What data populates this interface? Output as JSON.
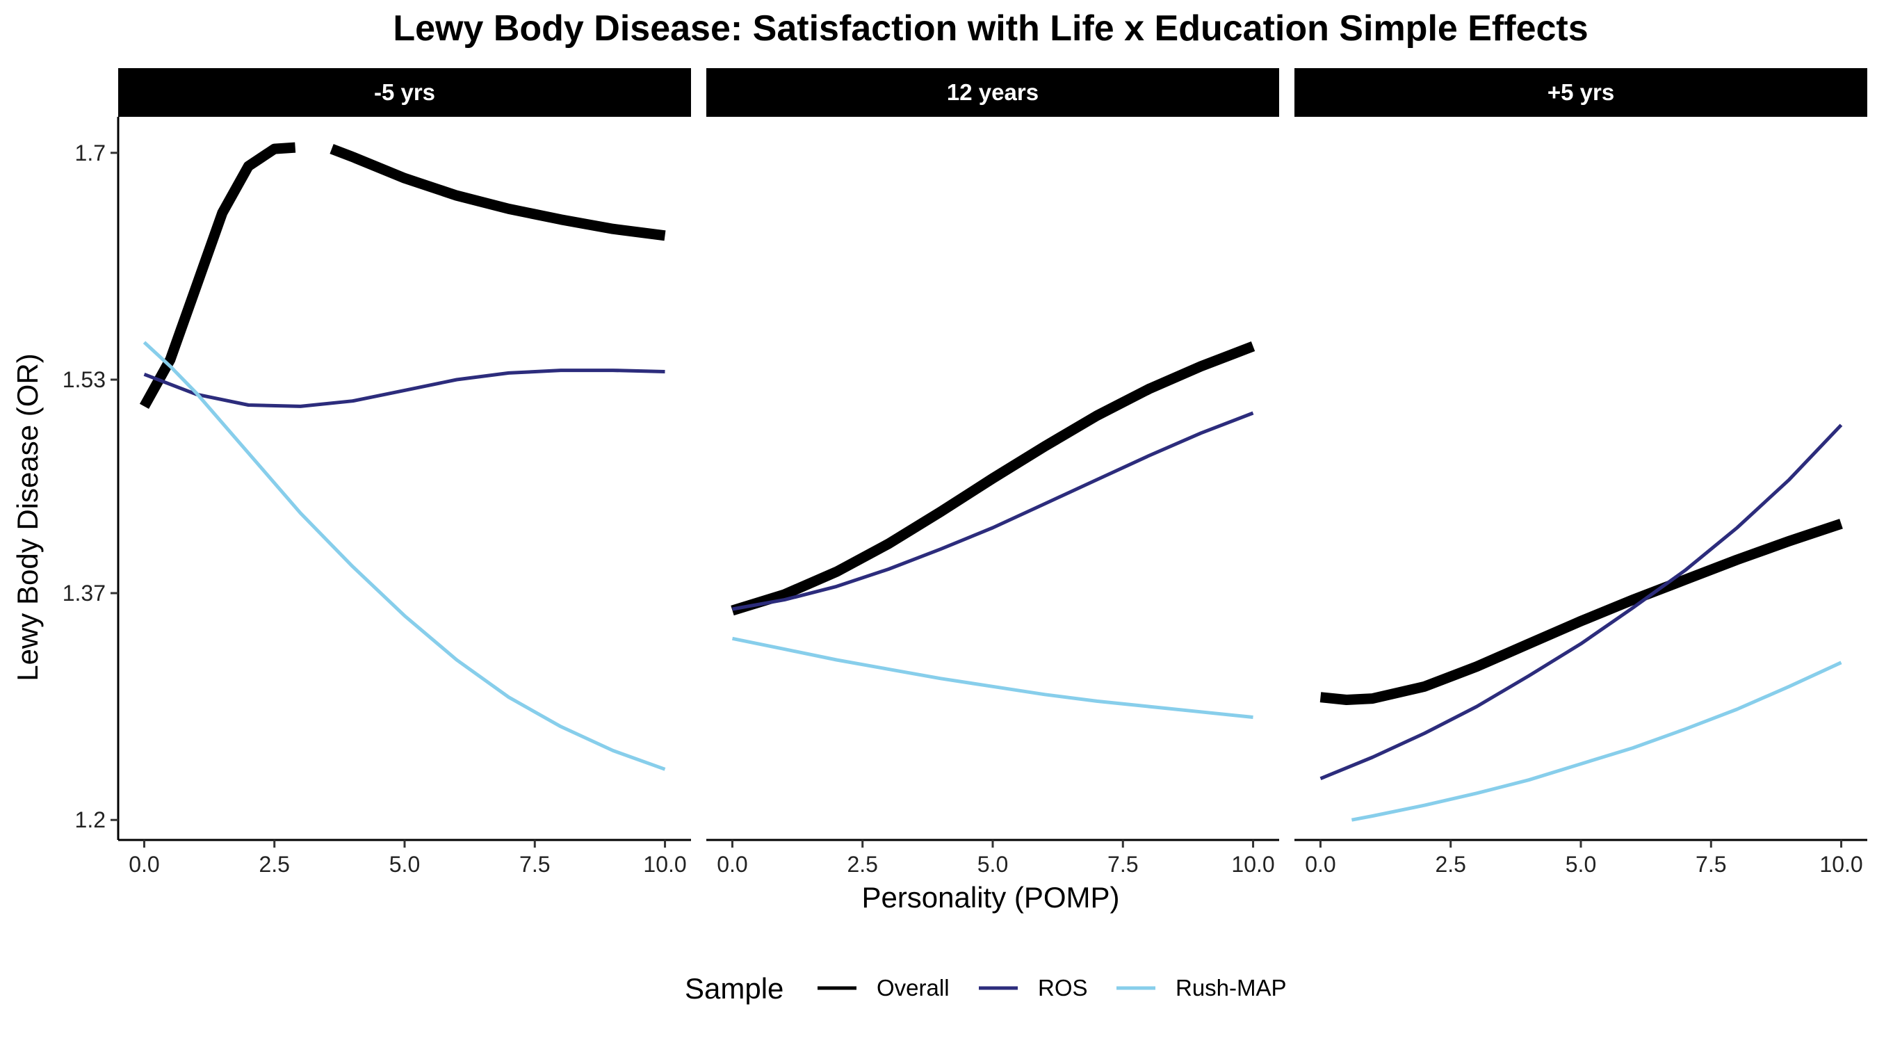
{
  "chart_data": {
    "type": "line",
    "title": "Lewy Body Disease: Satisfaction with Life x Education Simple Effects",
    "xlabel": "Personality (POMP)",
    "ylabel": "Lewy Body Disease (OR)",
    "xlim": [
      -0.5,
      10.5
    ],
    "ylim": [
      1.185,
      1.727
    ],
    "x_ticks": [
      "0.0",
      "2.5",
      "5.0",
      "7.5",
      "10.0"
    ],
    "y_ticks": [
      "1.2",
      "1.37",
      "1.53",
      "1.7"
    ],
    "legend": {
      "title": "Sample",
      "position": "bottom"
    },
    "grid": false,
    "series_styles": [
      {
        "name": "Overall",
        "color": "#000000",
        "thick": true
      },
      {
        "name": "ROS",
        "color": "#2c2c7c",
        "thick": false
      },
      {
        "name": "Rush-MAP",
        "color": "#87ceeb",
        "thick": false
      }
    ],
    "panels": [
      {
        "label": "-5 yrs",
        "series": [
          {
            "name": "Overall",
            "x": [
              0,
              0.5,
              1,
              1.5,
              2,
              2.5,
              2.9,
              null,
              3.6,
              4,
              5,
              6,
              7,
              8,
              9,
              10
            ],
            "y": [
              1.51,
              1.545,
              1.6,
              1.655,
              1.69,
              1.703,
              1.704,
              null,
              1.703,
              1.697,
              1.681,
              1.668,
              1.658,
              1.65,
              1.643,
              1.638
            ]
          },
          {
            "name": "ROS",
            "x": [
              0,
              1,
              2,
              3,
              4,
              5,
              6,
              7,
              8,
              9,
              10
            ],
            "y": [
              1.534,
              1.519,
              1.511,
              1.51,
              1.514,
              1.522,
              1.53,
              1.535,
              1.537,
              1.537,
              1.536
            ]
          },
          {
            "name": "Rush-MAP",
            "x": [
              0,
              0.5,
              1,
              2,
              3,
              4,
              5,
              6,
              7,
              8,
              9,
              10
            ],
            "y": [
              1.558,
              1.54,
              1.52,
              1.475,
              1.43,
              1.39,
              1.353,
              1.32,
              1.292,
              1.27,
              1.252,
              1.238
            ]
          }
        ]
      },
      {
        "label": "12 years",
        "series": [
          {
            "name": "Overall",
            "x": [
              0,
              1,
              2,
              3,
              4,
              5,
              6,
              7,
              8,
              9,
              10
            ],
            "y": [
              1.357,
              1.369,
              1.386,
              1.407,
              1.431,
              1.456,
              1.48,
              1.503,
              1.523,
              1.54,
              1.555
            ]
          },
          {
            "name": "ROS",
            "x": [
              0,
              1,
              2,
              3,
              4,
              5,
              6,
              7,
              8,
              9,
              10
            ],
            "y": [
              1.358,
              1.365,
              1.375,
              1.388,
              1.403,
              1.419,
              1.437,
              1.455,
              1.473,
              1.49,
              1.505
            ]
          },
          {
            "name": "Rush-MAP",
            "x": [
              0,
              1,
              2,
              3,
              4,
              5,
              6,
              7,
              8,
              9,
              10
            ],
            "y": [
              1.336,
              1.328,
              1.32,
              1.313,
              1.306,
              1.3,
              1.294,
              1.289,
              1.285,
              1.281,
              1.277
            ]
          }
        ]
      },
      {
        "label": "+5 yrs",
        "series": [
          {
            "name": "Overall",
            "x": [
              0,
              0.5,
              1,
              2,
              3,
              4,
              5,
              6,
              7,
              8,
              9,
              10
            ],
            "y": [
              1.292,
              1.29,
              1.291,
              1.3,
              1.315,
              1.332,
              1.349,
              1.365,
              1.38,
              1.395,
              1.409,
              1.422
            ]
          },
          {
            "name": "ROS",
            "x": [
              0,
              1,
              2,
              3,
              4,
              5,
              6,
              7,
              8,
              9,
              10
            ],
            "y": [
              1.231,
              1.247,
              1.265,
              1.285,
              1.308,
              1.332,
              1.359,
              1.387,
              1.419,
              1.455,
              1.496
            ]
          },
          {
            "name": "Rush-MAP",
            "x": [
              0.6,
              1,
              2,
              3,
              4,
              5,
              6,
              7,
              8,
              9,
              10
            ],
            "y": [
              1.2,
              1.203,
              1.211,
              1.22,
              1.23,
              1.242,
              1.254,
              1.268,
              1.283,
              1.3,
              1.318
            ]
          }
        ]
      }
    ]
  }
}
